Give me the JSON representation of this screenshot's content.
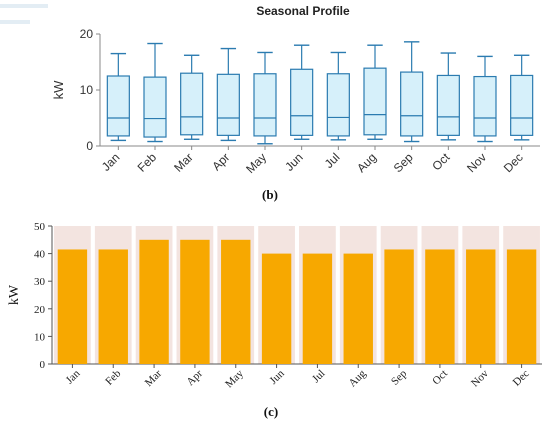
{
  "chart_data": [
    {
      "type": "box",
      "title": "Seasonal Profile",
      "ylabel": "kW",
      "caption": "(b)",
      "ylim": [
        0,
        20
      ],
      "yticks": [
        0,
        10,
        20
      ],
      "categories": [
        "Jan",
        "Feb",
        "Mar",
        "Apr",
        "May",
        "Jun",
        "Jul",
        "Aug",
        "Sep",
        "Oct",
        "Nov",
        "Dec"
      ],
      "boxes": [
        {
          "min": 1.0,
          "q1": 1.8,
          "median": 5.0,
          "q3": 12.5,
          "max": 16.5
        },
        {
          "min": 0.8,
          "q1": 1.6,
          "median": 4.9,
          "q3": 12.3,
          "max": 18.3
        },
        {
          "min": 1.2,
          "q1": 2.0,
          "median": 5.2,
          "q3": 13.0,
          "max": 16.2
        },
        {
          "min": 1.0,
          "q1": 1.9,
          "median": 5.0,
          "q3": 12.8,
          "max": 17.4
        },
        {
          "min": 0.4,
          "q1": 1.8,
          "median": 5.0,
          "q3": 12.9,
          "max": 16.7
        },
        {
          "min": 1.2,
          "q1": 1.9,
          "median": 5.4,
          "q3": 13.7,
          "max": 18.0
        },
        {
          "min": 1.1,
          "q1": 1.8,
          "median": 5.1,
          "q3": 12.9,
          "max": 16.7
        },
        {
          "min": 1.2,
          "q1": 2.0,
          "median": 5.6,
          "q3": 13.9,
          "max": 18.0
        },
        {
          "min": 0.8,
          "q1": 1.8,
          "median": 5.4,
          "q3": 13.2,
          "max": 18.6
        },
        {
          "min": 1.1,
          "q1": 1.9,
          "median": 5.2,
          "q3": 12.6,
          "max": 16.6
        },
        {
          "min": 0.8,
          "q1": 1.8,
          "median": 5.0,
          "q3": 12.4,
          "max": 16.0
        },
        {
          "min": 1.1,
          "q1": 1.9,
          "median": 5.0,
          "q3": 12.6,
          "max": 16.2
        }
      ],
      "colors": {
        "box_fill": "#d6f0fa",
        "box_stroke": "#2b7bb0"
      }
    },
    {
      "type": "bar",
      "title": "",
      "ylabel": "kW",
      "caption": "(c)",
      "ylim": [
        0,
        50
      ],
      "yticks": [
        0,
        10,
        20,
        30,
        40,
        50
      ],
      "categories": [
        "Jan",
        "Feb",
        "Mar",
        "Apr",
        "May",
        "Jun",
        "Jul",
        "Aug",
        "Sep",
        "Oct",
        "Nov",
        "Dec"
      ],
      "values": [
        41.5,
        41.5,
        45,
        45,
        45,
        40,
        40,
        40,
        41.5,
        41.5,
        41.5,
        41.5
      ],
      "colors": {
        "bar": "#f7a800",
        "band": "#f3e4e0"
      }
    }
  ]
}
